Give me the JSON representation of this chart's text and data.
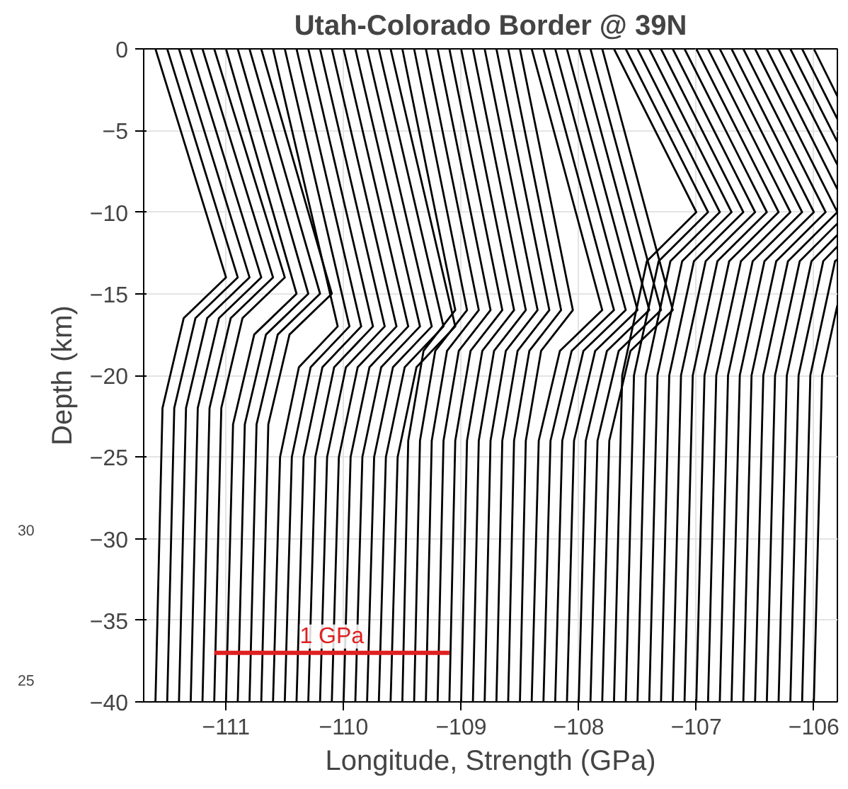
{
  "chart_data": {
    "type": "line",
    "title": "Utah-Colorado Border @ 39N",
    "xlabel": "Longitude, Strength (GPa)",
    "ylabel": "Depth (km)",
    "xlim": [
      -111.7,
      -105.8
    ],
    "ylim": [
      -40,
      0
    ],
    "xticks": [
      -111,
      -110,
      -109,
      -108,
      -107,
      -106
    ],
    "yticks": [
      -40,
      -35,
      -30,
      -25,
      -20,
      -15,
      -10,
      -5,
      0
    ],
    "grid": true,
    "annotations": [
      "30",
      "25"
    ],
    "series": [
      {
        "color": "#000000",
        "x": [
          -111.6,
          -111.0,
          -111.36,
          -111.54,
          -111.6
        ],
        "values": [
          0,
          -14,
          -16.5,
          -22,
          -40
        ]
      },
      {
        "color": "#000000",
        "x": [
          -111.5,
          -110.9,
          -111.26,
          -111.44,
          -111.5
        ],
        "values": [
          0,
          -14,
          -16.5,
          -22,
          -40
        ]
      },
      {
        "color": "#000000",
        "x": [
          -111.4,
          -110.8,
          -111.16,
          -111.34,
          -111.4
        ],
        "values": [
          0,
          -14,
          -16.5,
          -22,
          -40
        ]
      },
      {
        "color": "#000000",
        "x": [
          -111.3,
          -110.7,
          -111.06,
          -111.24,
          -111.3
        ],
        "values": [
          0,
          -14,
          -16.5,
          -22,
          -40
        ]
      },
      {
        "color": "#000000",
        "x": [
          -111.2,
          -110.6,
          -110.96,
          -111.14,
          -111.2
        ],
        "values": [
          0,
          -14,
          -16.5,
          -22,
          -40
        ]
      },
      {
        "color": "#000000",
        "x": [
          -111.1,
          -110.5,
          -110.86,
          -111.04,
          -111.1
        ],
        "values": [
          0,
          -14,
          -16.5,
          -22,
          -40
        ]
      },
      {
        "color": "#000000",
        "x": [
          -111.0,
          -110.4,
          -110.76,
          -110.94,
          -111.0
        ],
        "values": [
          0,
          -15,
          -17.5,
          -23,
          -40
        ]
      },
      {
        "color": "#000000",
        "x": [
          -110.9,
          -110.3,
          -110.66,
          -110.84,
          -110.9
        ],
        "values": [
          0,
          -15,
          -17.5,
          -23,
          -40
        ]
      },
      {
        "color": "#000000",
        "x": [
          -110.8,
          -110.2,
          -110.56,
          -110.74,
          -110.8
        ],
        "values": [
          0,
          -15,
          -17.5,
          -23,
          -40
        ]
      },
      {
        "color": "#000000",
        "x": [
          -110.7,
          -110.1,
          -110.46,
          -110.64,
          -110.7
        ],
        "values": [
          0,
          -15,
          -17.5,
          -23,
          -40
        ]
      },
      {
        "color": "#000000",
        "x": [
          -110.6,
          -110.05,
          -110.38,
          -110.54,
          -110.6
        ],
        "values": [
          0,
          -17,
          -19.5,
          -25,
          -40
        ]
      },
      {
        "color": "#000000",
        "x": [
          -110.5,
          -109.95,
          -110.28,
          -110.44,
          -110.5
        ],
        "values": [
          0,
          -17,
          -19.5,
          -25,
          -40
        ]
      },
      {
        "color": "#000000",
        "x": [
          -110.4,
          -109.85,
          -110.18,
          -110.34,
          -110.4
        ],
        "values": [
          0,
          -17,
          -19.5,
          -25,
          -40
        ]
      },
      {
        "color": "#000000",
        "x": [
          -110.3,
          -109.75,
          -110.08,
          -110.24,
          -110.3
        ],
        "values": [
          0,
          -17,
          -19.5,
          -25,
          -40
        ]
      },
      {
        "color": "#000000",
        "x": [
          -110.2,
          -109.65,
          -109.98,
          -110.14,
          -110.2
        ],
        "values": [
          0,
          -17,
          -19.5,
          -25,
          -40
        ]
      },
      {
        "color": "#000000",
        "x": [
          -110.1,
          -109.55,
          -109.88,
          -110.04,
          -110.1
        ],
        "values": [
          0,
          -17,
          -19.5,
          -25,
          -40
        ]
      },
      {
        "color": "#000000",
        "x": [
          -110.0,
          -109.45,
          -109.78,
          -109.94,
          -110.0
        ],
        "values": [
          0,
          -17,
          -19.5,
          -25,
          -40
        ]
      },
      {
        "color": "#000000",
        "x": [
          -109.9,
          -109.35,
          -109.68,
          -109.84,
          -109.9
        ],
        "values": [
          0,
          -17,
          -19.5,
          -25,
          -40
        ]
      },
      {
        "color": "#000000",
        "x": [
          -109.8,
          -109.25,
          -109.58,
          -109.74,
          -109.8
        ],
        "values": [
          0,
          -17,
          -19.5,
          -25,
          -40
        ]
      },
      {
        "color": "#000000",
        "x": [
          -109.7,
          -109.15,
          -109.48,
          -109.64,
          -109.7
        ],
        "values": [
          0,
          -17,
          -19.5,
          -25,
          -40
        ]
      },
      {
        "color": "#000000",
        "x": [
          -109.6,
          -109.05,
          -109.38,
          -109.54,
          -109.6
        ],
        "values": [
          0,
          -17,
          -19.5,
          -25,
          -40
        ]
      },
      {
        "color": "#000000",
        "x": [
          -109.5,
          -109.05,
          -109.32,
          -109.45,
          -109.5
        ],
        "values": [
          0,
          -16,
          -18.5,
          -24,
          -40
        ]
      },
      {
        "color": "#000000",
        "x": [
          -109.4,
          -108.95,
          -109.22,
          -109.35,
          -109.4
        ],
        "values": [
          0,
          -16,
          -18.5,
          -24,
          -40
        ]
      },
      {
        "color": "#000000",
        "x": [
          -109.3,
          -108.85,
          -109.12,
          -109.25,
          -109.3
        ],
        "values": [
          0,
          -16,
          -18.5,
          -24,
          -40
        ]
      },
      {
        "color": "#000000",
        "x": [
          -109.2,
          -108.75,
          -109.02,
          -109.15,
          -109.2
        ],
        "values": [
          0,
          -16,
          -18.5,
          -24,
          -40
        ]
      },
      {
        "color": "#000000",
        "x": [
          -109.1,
          -108.65,
          -108.92,
          -109.05,
          -109.1
        ],
        "values": [
          0,
          -16,
          -18.5,
          -24,
          -40
        ]
      },
      {
        "color": "#000000",
        "x": [
          -109.0,
          -108.55,
          -108.82,
          -108.95,
          -109.0
        ],
        "values": [
          0,
          -16,
          -18.5,
          -24,
          -40
        ]
      },
      {
        "color": "#000000",
        "x": [
          -108.9,
          -108.45,
          -108.72,
          -108.85,
          -108.9
        ],
        "values": [
          0,
          -16,
          -18.5,
          -24,
          -40
        ]
      },
      {
        "color": "#000000",
        "x": [
          -108.8,
          -108.35,
          -108.62,
          -108.75,
          -108.8
        ],
        "values": [
          0,
          -16,
          -18.5,
          -24,
          -40
        ]
      },
      {
        "color": "#000000",
        "x": [
          -108.7,
          -108.25,
          -108.52,
          -108.65,
          -108.7
        ],
        "values": [
          0,
          -16,
          -18.5,
          -24,
          -40
        ]
      },
      {
        "color": "#000000",
        "x": [
          -108.6,
          -108.15,
          -108.42,
          -108.55,
          -108.6
        ],
        "values": [
          0,
          -16,
          -18.5,
          -24,
          -40
        ]
      },
      {
        "color": "#000000",
        "x": [
          -108.5,
          -108.05,
          -108.32,
          -108.45,
          -108.5
        ],
        "values": [
          0,
          -16,
          -18.5,
          -24,
          -40
        ]
      },
      {
        "color": "#000000",
        "x": [
          -108.4,
          -107.8,
          -108.16,
          -108.34,
          -108.4
        ],
        "values": [
          0,
          -16,
          -18.5,
          -24,
          -40
        ]
      },
      {
        "color": "#000000",
        "x": [
          -108.3,
          -107.7,
          -108.06,
          -108.24,
          -108.3
        ],
        "values": [
          0,
          -16,
          -18.5,
          -24,
          -40
        ]
      },
      {
        "color": "#000000",
        "x": [
          -108.2,
          -107.6,
          -107.96,
          -108.14,
          -108.2
        ],
        "values": [
          0,
          -16,
          -18.5,
          -24,
          -40
        ]
      },
      {
        "color": "#000000",
        "x": [
          -108.1,
          -107.5,
          -107.86,
          -108.04,
          -108.1
        ],
        "values": [
          0,
          -16,
          -18.5,
          -24,
          -40
        ]
      },
      {
        "color": "#000000",
        "x": [
          -108.0,
          -107.4,
          -107.76,
          -107.94,
          -108.0
        ],
        "values": [
          0,
          -16,
          -18.5,
          -24,
          -40
        ]
      },
      {
        "color": "#000000",
        "x": [
          -107.9,
          -107.3,
          -107.66,
          -107.84,
          -107.9
        ],
        "values": [
          0,
          -16,
          -18.5,
          -24,
          -40
        ]
      },
      {
        "color": "#000000",
        "x": [
          -107.8,
          -107.2,
          -107.56,
          -107.74,
          -107.8
        ],
        "values": [
          0,
          -16,
          -18.5,
          -24,
          -40
        ]
      },
      {
        "color": "#000000",
        "x": [
          -107.7,
          -107.0,
          -107.42,
          -107.63,
          -107.7
        ],
        "values": [
          0,
          -10,
          -13,
          -20,
          -40
        ]
      },
      {
        "color": "#000000",
        "x": [
          -107.6,
          -106.9,
          -107.32,
          -107.53,
          -107.6
        ],
        "values": [
          0,
          -10,
          -13,
          -20,
          -40
        ]
      },
      {
        "color": "#000000",
        "x": [
          -107.5,
          -106.8,
          -107.22,
          -107.43,
          -107.5
        ],
        "values": [
          0,
          -10,
          -13,
          -20,
          -40
        ]
      },
      {
        "color": "#000000",
        "x": [
          -107.4,
          -106.7,
          -107.12,
          -107.33,
          -107.4
        ],
        "values": [
          0,
          -10,
          -13,
          -20,
          -40
        ]
      },
      {
        "color": "#000000",
        "x": [
          -107.3,
          -106.6,
          -107.02,
          -107.23,
          -107.3
        ],
        "values": [
          0,
          -10,
          -13,
          -20,
          -40
        ]
      },
      {
        "color": "#000000",
        "x": [
          -107.2,
          -106.5,
          -106.92,
          -107.13,
          -107.2
        ],
        "values": [
          0,
          -10,
          -13,
          -20,
          -40
        ]
      },
      {
        "color": "#000000",
        "x": [
          -107.1,
          -106.4,
          -106.82,
          -107.03,
          -107.1
        ],
        "values": [
          0,
          -10,
          -13,
          -20,
          -40
        ]
      },
      {
        "color": "#000000",
        "x": [
          -107.0,
          -106.3,
          -106.72,
          -106.93,
          -107.0
        ],
        "values": [
          0,
          -10,
          -13,
          -20,
          -40
        ]
      },
      {
        "color": "#000000",
        "x": [
          -106.9,
          -106.2,
          -106.62,
          -106.83,
          -106.9
        ],
        "values": [
          0,
          -10,
          -13,
          -20,
          -40
        ]
      },
      {
        "color": "#000000",
        "x": [
          -106.8,
          -106.1,
          -106.52,
          -106.73,
          -106.8
        ],
        "values": [
          0,
          -10,
          -13,
          -20,
          -40
        ]
      },
      {
        "color": "#000000",
        "x": [
          -106.7,
          -106.0,
          -106.42,
          -106.63,
          -106.7
        ],
        "values": [
          0,
          -10,
          -13,
          -20,
          -40
        ]
      },
      {
        "color": "#000000",
        "x": [
          -106.6,
          -105.9,
          -106.32,
          -106.53,
          -106.6
        ],
        "values": [
          0,
          -10,
          -13,
          -20,
          -40
        ]
      },
      {
        "color": "#000000",
        "x": [
          -106.5,
          -105.8,
          -106.22,
          -106.43,
          -106.5
        ],
        "values": [
          0,
          -10,
          -13,
          -20,
          -40
        ]
      },
      {
        "color": "#000000",
        "x": [
          -106.4,
          -105.8
        ],
        "values": [
          0,
          -8.6
        ]
      },
      {
        "color": "#000000",
        "x": [
          -105.8,
          -106.12,
          -106.33,
          -106.4
        ],
        "values": [
          -10.7,
          -13,
          -20,
          -40
        ]
      },
      {
        "color": "#000000",
        "x": [
          -106.3,
          -105.8
        ],
        "values": [
          0,
          -7.1
        ]
      },
      {
        "color": "#000000",
        "x": [
          -105.8,
          -106.02,
          -106.23,
          -106.3
        ],
        "values": [
          -11.4,
          -13,
          -20,
          -40
        ]
      },
      {
        "color": "#000000",
        "x": [
          -106.2,
          -105.8
        ],
        "values": [
          0,
          -5.7
        ]
      },
      {
        "color": "#000000",
        "x": [
          -105.8,
          -105.92,
          -106.13,
          -106.2
        ],
        "values": [
          -12.1,
          -13,
          -20,
          -40
        ]
      },
      {
        "color": "#000000",
        "x": [
          -106.1,
          -105.8
        ],
        "values": [
          0,
          -4.3
        ]
      },
      {
        "color": "#000000",
        "x": [
          -105.8,
          -105.82,
          -106.03,
          -106.1
        ],
        "values": [
          -12.9,
          -13,
          -20,
          -40
        ]
      },
      {
        "color": "#000000",
        "x": [
          -106.0,
          -105.8
        ],
        "values": [
          0,
          -2.9
        ]
      },
      {
        "color": "#000000",
        "x": [
          -105.8,
          -105.93,
          -106.0
        ],
        "values": [
          -15.7,
          -20,
          -40
        ]
      },
      {
        "name": "1 GPa",
        "color": "#e02020",
        "x": [
          -111.1,
          -109.1
        ],
        "values": [
          -37,
          -37
        ]
      }
    ]
  }
}
